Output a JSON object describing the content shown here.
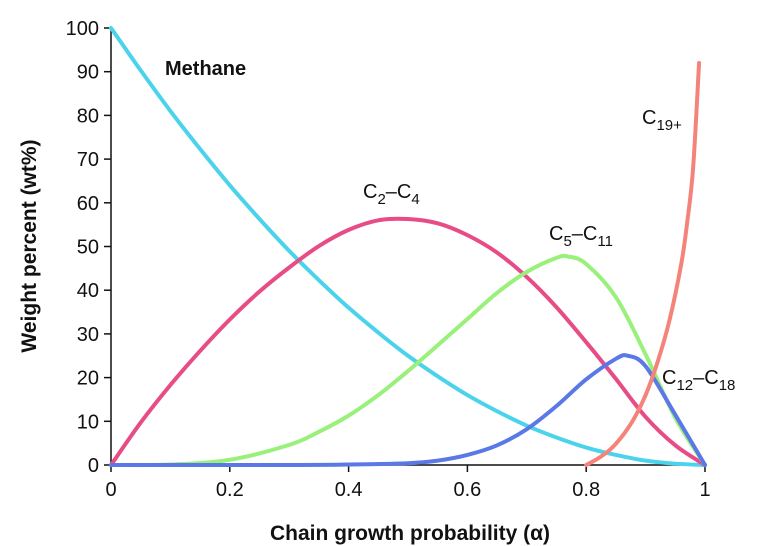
{
  "chart_data": {
    "type": "line",
    "xlabel": "Chain growth probability (α)",
    "ylabel": "Weight percent (wt%)",
    "xlim": [
      0,
      1
    ],
    "ylim": [
      0,
      100
    ],
    "x_ticks": [
      "0",
      "0.2",
      "0.4",
      "0.6",
      "0.8",
      "1"
    ],
    "y_ticks": [
      "0",
      "10",
      "20",
      "30",
      "40",
      "50",
      "60",
      "70",
      "80",
      "90",
      "100"
    ],
    "grid": false,
    "legend": "none",
    "series": [
      {
        "name": "Methane",
        "color": "#4cd3ec",
        "x": [
          0,
          0.05,
          0.1,
          0.15,
          0.2,
          0.25,
          0.3,
          0.35,
          0.4,
          0.45,
          0.5,
          0.55,
          0.6,
          0.65,
          0.7,
          0.75,
          0.8,
          0.85,
          0.9,
          0.95,
          1.0
        ],
        "y": [
          100,
          90.3,
          81.0,
          72.3,
          64.0,
          56.3,
          49.0,
          42.3,
          36.0,
          30.3,
          25.0,
          20.3,
          16.0,
          12.3,
          9.0,
          6.3,
          4.0,
          2.3,
          1.0,
          0.3,
          0
        ]
      },
      {
        "name": "C2–C4",
        "label_main": "C",
        "label_sub1": "2",
        "label_mid": "–C",
        "label_sub2": "4",
        "color": "#e84c86",
        "x": [
          0,
          0.05,
          0.1,
          0.15,
          0.2,
          0.25,
          0.3,
          0.35,
          0.4,
          0.45,
          0.5,
          0.55,
          0.6,
          0.65,
          0.7,
          0.75,
          0.8,
          0.85,
          0.9,
          0.95,
          1.0
        ],
        "y": [
          0,
          9.7,
          18.3,
          26.1,
          33.3,
          39.7,
          45.2,
          50.1,
          53.8,
          56.0,
          56.3,
          55.3,
          52.6,
          48.6,
          43.0,
          36.1,
          28.1,
          19.7,
          11.0,
          4.5,
          0
        ]
      },
      {
        "name": "C5–C11",
        "label_main": "C",
        "label_sub1": "5",
        "label_mid": "–C",
        "label_sub2": "11",
        "color": "#99f07a",
        "x": [
          0,
          0.1,
          0.2,
          0.3,
          0.35,
          0.4,
          0.45,
          0.5,
          0.55,
          0.6,
          0.65,
          0.7,
          0.75,
          0.77,
          0.8,
          0.85,
          0.9,
          0.95,
          1.0
        ],
        "y": [
          0,
          0.1,
          1.2,
          4.6,
          7.6,
          11.3,
          16.0,
          21.5,
          27.4,
          33.4,
          39.4,
          44.2,
          47.4,
          47.7,
          46.0,
          38.4,
          25.3,
          10.8,
          0
        ]
      },
      {
        "name": "C12–C18",
        "label_main": "C",
        "label_sub1": "12",
        "label_mid": "–C",
        "label_sub2": "18",
        "color": "#5a78e6",
        "x": [
          0,
          0.3,
          0.4,
          0.5,
          0.55,
          0.6,
          0.65,
          0.7,
          0.75,
          0.8,
          0.85,
          0.87,
          0.9,
          0.95,
          1.0
        ],
        "y": [
          0,
          0,
          0.1,
          0.4,
          1.0,
          2.3,
          4.5,
          8.2,
          13.5,
          19.6,
          24.3,
          25.0,
          22.6,
          11.5,
          0
        ]
      },
      {
        "name": "C19+",
        "label_main": "C",
        "label_sub1": "19+",
        "color": "#f4847a",
        "x": [
          0.8,
          0.82,
          0.84,
          0.86,
          0.88,
          0.9,
          0.92,
          0.94,
          0.96,
          0.97,
          0.98,
          0.99
        ],
        "y": [
          0,
          1.5,
          3.5,
          6.5,
          10.5,
          16.0,
          23.5,
          33.0,
          46.0,
          55.5,
          68.0,
          92.0
        ]
      }
    ]
  }
}
